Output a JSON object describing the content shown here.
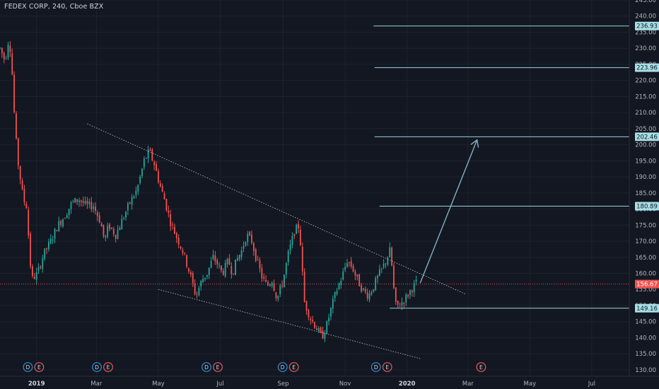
{
  "header": {
    "symbol_title": "FEDEX CORP, 240, Cboe BZX"
  },
  "colors": {
    "background": "#131722",
    "grid": "#1e222d",
    "up": "#26a69a",
    "down": "#ef5350",
    "axis_text": "#b2b5be",
    "level_line": "#9ad3de",
    "level_label_bg": "#a7dfe6",
    "level_label_text": "#131722",
    "current_price_bg": "#ef5350",
    "trendline": "#c8ccd4",
    "arrow": "#7fb3c2",
    "event_earnings": "#f05a5a",
    "event_dividend": "#2d8fd8"
  },
  "chart_data": {
    "type": "candlestick",
    "title": "FEDEX CORP, 240, Cboe BZX",
    "ylim": [
      128,
      245
    ],
    "y_ticks": [
      130,
      135,
      140,
      145,
      150,
      155,
      160,
      165,
      170,
      175,
      180,
      185,
      190,
      195,
      200,
      205,
      210,
      215,
      220,
      225,
      230,
      235,
      240,
      245
    ],
    "y_tick_labels": [
      "130.00",
      "135.00",
      "140.00",
      "145.00",
      "150.00",
      "155.00",
      "160.00",
      "165.00",
      "170.00",
      "175.00",
      "180.00",
      "185.00",
      "190.00",
      "195.00",
      "200.00",
      "205.00",
      "210.00",
      "215.00",
      "220.00",
      "225.00",
      "230.00",
      "235.00",
      "240.00",
      "245.00"
    ],
    "x_start": "2018-11-26",
    "x_end": "2020-08-07",
    "x_ticks": [
      {
        "date": "2019-01-01",
        "label": "2019",
        "bold": true
      },
      {
        "date": "2019-03-01",
        "label": "Mar"
      },
      {
        "date": "2019-05-01",
        "label": "May"
      },
      {
        "date": "2019-07-01",
        "label": "Jul"
      },
      {
        "date": "2019-09-01",
        "label": "Sep"
      },
      {
        "date": "2019-11-01",
        "label": "Nov"
      },
      {
        "date": "2020-01-01",
        "label": "2020",
        "bold": true
      },
      {
        "date": "2020-03-01",
        "label": "Mar"
      },
      {
        "date": "2020-05-01",
        "label": "May"
      },
      {
        "date": "2020-07-01",
        "label": "Jul"
      }
    ],
    "price_path": [
      [
        "2018-11-26",
        230
      ],
      [
        "2018-12-01",
        226
      ],
      [
        "2018-12-05",
        234
      ],
      [
        "2018-12-08",
        222
      ],
      [
        "2018-12-11",
        204
      ],
      [
        "2018-12-14",
        194
      ],
      [
        "2018-12-19",
        183
      ],
      [
        "2018-12-22",
        181
      ],
      [
        "2018-12-24",
        172
      ],
      [
        "2018-12-27",
        158
      ],
      [
        "2019-01-02",
        160
      ],
      [
        "2019-01-08",
        166
      ],
      [
        "2019-01-15",
        170
      ],
      [
        "2019-01-22",
        175
      ],
      [
        "2019-01-29",
        178
      ],
      [
        "2019-02-05",
        182
      ],
      [
        "2019-02-12",
        183
      ],
      [
        "2019-02-19",
        181
      ],
      [
        "2019-02-26",
        181
      ],
      [
        "2019-03-05",
        176
      ],
      [
        "2019-03-09",
        170
      ],
      [
        "2019-03-13",
        175
      ],
      [
        "2019-03-20",
        172
      ],
      [
        "2019-03-27",
        177
      ],
      [
        "2019-04-03",
        182
      ],
      [
        "2019-04-10",
        186
      ],
      [
        "2019-04-17",
        195
      ],
      [
        "2019-04-22",
        198
      ],
      [
        "2019-04-27",
        194
      ],
      [
        "2019-05-02",
        188
      ],
      [
        "2019-05-07",
        183
      ],
      [
        "2019-05-13",
        176
      ],
      [
        "2019-05-18",
        172
      ],
      [
        "2019-05-25",
        167
      ],
      [
        "2019-06-01",
        160
      ],
      [
        "2019-06-07",
        153
      ],
      [
        "2019-06-13",
        158
      ],
      [
        "2019-06-18",
        160
      ],
      [
        "2019-06-24",
        165
      ],
      [
        "2019-06-28",
        163
      ],
      [
        "2019-07-03",
        160
      ],
      [
        "2019-07-09",
        164
      ],
      [
        "2019-07-13",
        160
      ],
      [
        "2019-07-17",
        164
      ],
      [
        "2019-07-22",
        167
      ],
      [
        "2019-07-27",
        172
      ],
      [
        "2019-08-01",
        170
      ],
      [
        "2019-08-06",
        164
      ],
      [
        "2019-08-11",
        159
      ],
      [
        "2019-08-16",
        156
      ],
      [
        "2019-08-21",
        158
      ],
      [
        "2019-08-26",
        152
      ],
      [
        "2019-09-01",
        158
      ],
      [
        "2019-09-06",
        166
      ],
      [
        "2019-09-12",
        173
      ],
      [
        "2019-09-17",
        175
      ],
      [
        "2019-09-19",
        164
      ],
      [
        "2019-09-22",
        151
      ],
      [
        "2019-09-28",
        146
      ],
      [
        "2019-10-04",
        143
      ],
      [
        "2019-10-09",
        140
      ],
      [
        "2019-10-14",
        144
      ],
      [
        "2019-10-19",
        150
      ],
      [
        "2019-10-24",
        155
      ],
      [
        "2019-10-29",
        159
      ],
      [
        "2019-11-03",
        164
      ],
      [
        "2019-11-08",
        162
      ],
      [
        "2019-11-13",
        158
      ],
      [
        "2019-11-18",
        155
      ],
      [
        "2019-11-24",
        153
      ],
      [
        "2019-11-29",
        156
      ],
      [
        "2019-12-05",
        160
      ],
      [
        "2019-12-10",
        163
      ],
      [
        "2019-12-15",
        167
      ],
      [
        "2019-12-18",
        160
      ],
      [
        "2019-12-20",
        150
      ],
      [
        "2019-12-24",
        150
      ],
      [
        "2019-12-30",
        152
      ],
      [
        "2020-01-05",
        155
      ],
      [
        "2020-01-10",
        157
      ]
    ],
    "upper_trendline": [
      [
        "2019-02-20",
        206.5
      ],
      [
        "2020-02-28",
        153.5
      ]
    ],
    "lower_trendline": [
      [
        "2019-05-01",
        155
      ],
      [
        "2020-01-14",
        133.5
      ]
    ],
    "projection_arrow": [
      [
        "2020-01-14",
        157
      ],
      [
        "2020-03-10",
        201.5
      ]
    ],
    "levels": [
      {
        "price": 236.93,
        "label": "236.93",
        "from": "2019-11-29"
      },
      {
        "price": 223.96,
        "label": "223.96",
        "from": "2019-11-30"
      },
      {
        "price": 202.46,
        "label": "202.46",
        "from": "2019-11-30"
      },
      {
        "price": 180.89,
        "label": "180.89",
        "from": "2019-12-05"
      },
      {
        "price": 149.16,
        "label": "149.16",
        "from": "2019-12-15"
      }
    ],
    "current_price": {
      "price": 156.67,
      "label": "156.67"
    },
    "events": [
      {
        "date": "2018-12-29",
        "labels": [
          "D",
          "E"
        ]
      },
      {
        "date": "2019-03-07",
        "labels": [
          "D",
          "E"
        ]
      },
      {
        "date": "2019-06-23",
        "labels": [
          "D",
          "E"
        ]
      },
      {
        "date": "2019-09-06",
        "labels": [
          "D",
          "E"
        ]
      },
      {
        "date": "2019-12-07",
        "labels": [
          "D",
          "E"
        ]
      },
      {
        "date": "2020-03-14",
        "labels": [
          "E"
        ]
      }
    ]
  }
}
